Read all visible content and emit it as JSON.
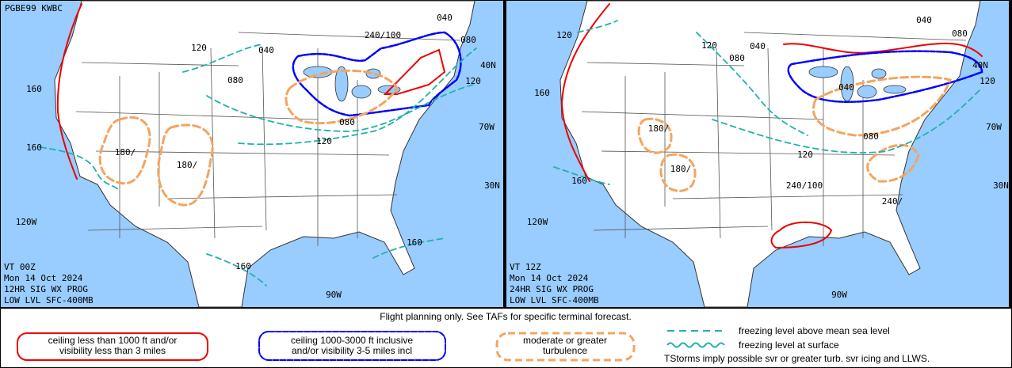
{
  "panels": [
    {
      "header": "PGBE99 KWBC",
      "labels": [
        "120",
        "040",
        "240/100",
        "040",
        "080",
        "40N",
        "120",
        "080",
        "160",
        "080",
        "120",
        "70W",
        "160",
        "180/",
        "180/",
        "30N",
        "120W",
        "160",
        "160",
        "90W"
      ],
      "footer": [
        "VT 00Z",
        "Mon 14 Oct 2024",
        "12HR SIG WX PROG",
        "LOW LVL SFC-400MB"
      ]
    },
    {
      "labels": [
        "120",
        "120",
        "080",
        "040",
        "040",
        "080",
        "40N",
        "120",
        "160",
        "040",
        "70W",
        "180/",
        "080",
        "120",
        "180/",
        "160",
        "240/100",
        "240/",
        "30N",
        "120W",
        "90W"
      ],
      "footer": [
        "VT 12Z",
        "Mon 14 Oct 2024",
        "24HR SIG WX PROG",
        "LOW LVL SFC-400MB"
      ]
    }
  ],
  "legend": {
    "notice": "Flight planning only. See TAFs for specific terminal forecast.",
    "ifr": [
      "ceiling less than 1000 ft and/or",
      "visibility less than 3 miles"
    ],
    "mvfr": [
      "ceiling 1000-3000 ft inclusive",
      "and/or visibility 3-5 miles incl"
    ],
    "turbulence": [
      "moderate or greater",
      "turbulence"
    ],
    "freezing_msl": "freezing level above mean sea level",
    "freezing_sfc": "freezing level at surface",
    "tstorms": "TStorms imply possible svr or greater turb. svr icing and LLWS."
  }
}
